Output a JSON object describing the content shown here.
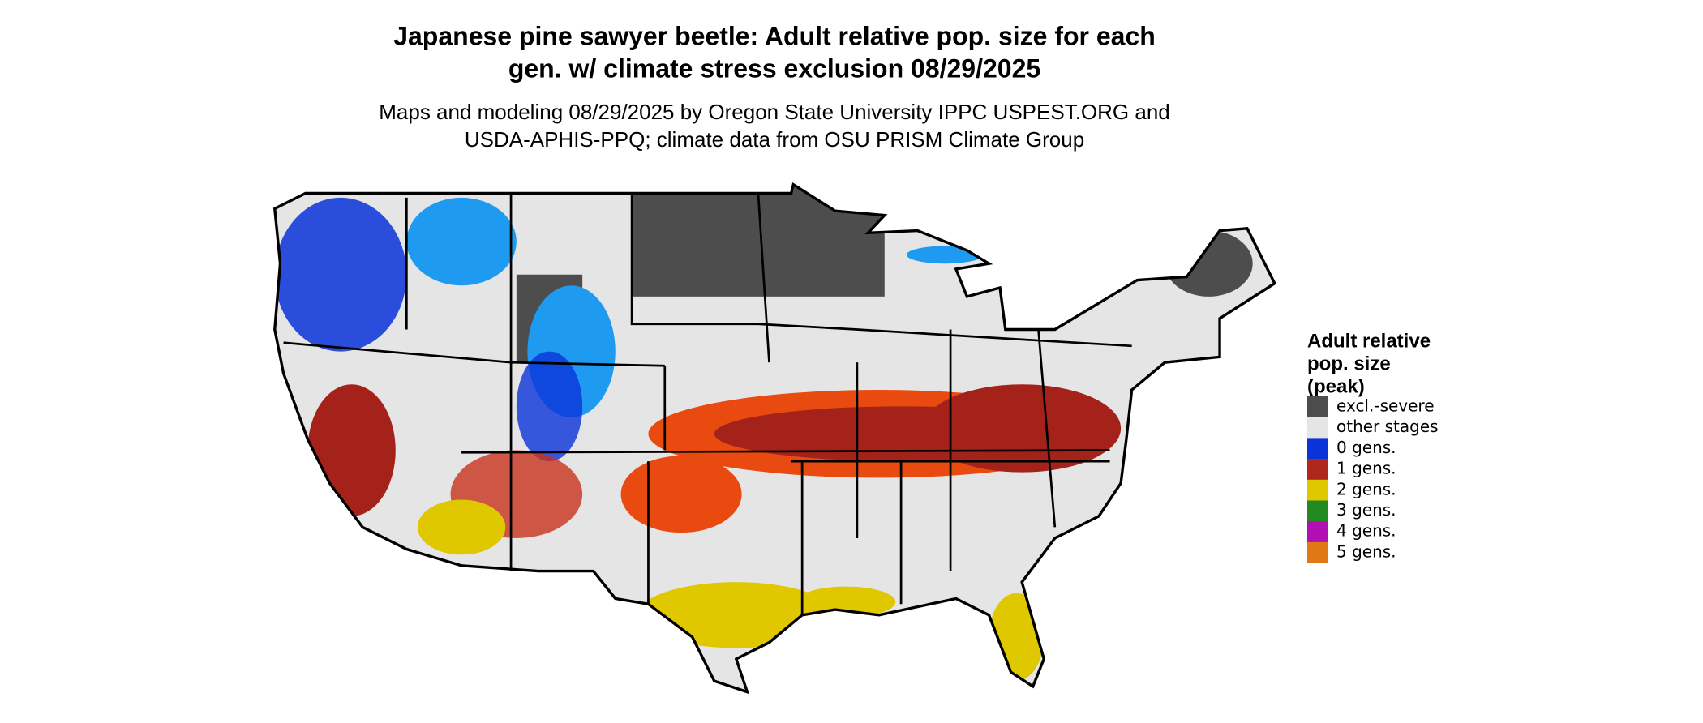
{
  "title": [
    "Japanese pine sawyer beetle: Adult relative pop. size for each",
    "gen. w/ climate stress exclusion 08/29/2025"
  ],
  "subtitle": [
    "Maps and modeling 08/29/2025 by Oregon State University IPPC USPEST.ORG and",
    "USDA-APHIS-PPQ; climate data from OSU PRISM Climate Group"
  ],
  "legend": {
    "title": [
      "Adult relative",
      "pop. size",
      "(peak)"
    ],
    "items": [
      {
        "label": "excl.-severe",
        "color": "#4d4d4d"
      },
      {
        "label": "other stages",
        "color": "#e5e5e5"
      },
      {
        "label": "0 gens.",
        "color": "#0a33d9"
      },
      {
        "label": "1 gens.",
        "color": "#b0281c"
      },
      {
        "label": "2 gens.",
        "color": "#e0c800"
      },
      {
        "label": "3 gens.",
        "color": "#218a21"
      },
      {
        "label": "4 gens.",
        "color": "#b00fb3"
      },
      {
        "label": "5 gens.",
        "color": "#e07816"
      }
    ]
  }
}
